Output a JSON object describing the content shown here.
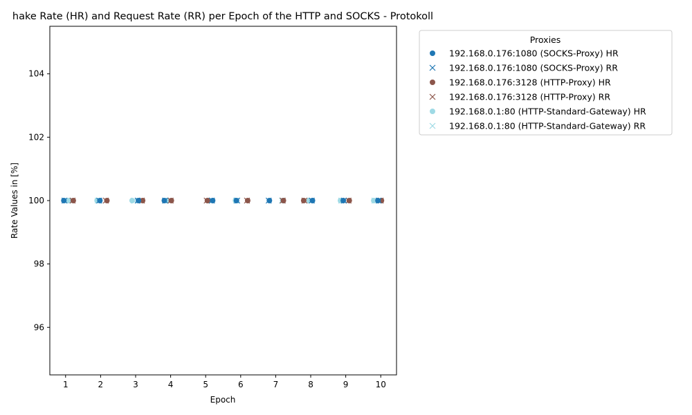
{
  "chart_data": {
    "type": "scatter",
    "title": "hake Rate (HR) and Request Rate (RR) per Epoch of the HTTP and SOCKS - Protokoll",
    "xlabel": "Epoch",
    "ylabel": "Rate Values in [%]",
    "xlim": [
      0.55,
      10.45
    ],
    "ylim": [
      94.5,
      105.5
    ],
    "x_ticks": [
      1,
      2,
      3,
      4,
      5,
      6,
      7,
      8,
      9,
      10
    ],
    "y_ticks": [
      96,
      98,
      100,
      102,
      104
    ],
    "grid": false,
    "legend": {
      "title": "Proxies",
      "placement": "outside-top-right"
    },
    "series": [
      {
        "name": "192.168.0.176:1080 (SOCKS-Proxy) HR",
        "marker": "circle",
        "color": "#1f77b4",
        "x": [
          0.95,
          1.98,
          3.08,
          3.82,
          5.2,
          5.88,
          6.82,
          8.05,
          8.93,
          9.92
        ],
        "y": [
          100,
          100,
          100,
          100,
          100,
          100,
          100,
          100,
          100,
          100
        ]
      },
      {
        "name": "192.168.0.176:1080 (SOCKS-Proxy) RR",
        "marker": "x",
        "color": "#1f77b4",
        "x": [
          0.97,
          1.96,
          3.06,
          3.84,
          5.18,
          5.9,
          6.8,
          8.03,
          8.95,
          9.94
        ],
        "y": [
          100,
          100,
          100,
          100,
          100,
          100,
          100,
          100,
          100,
          100
        ]
      },
      {
        "name": "192.168.0.176:3128 (HTTP-Proxy) HR",
        "marker": "circle",
        "color": "#8c564b",
        "x": [
          1.22,
          2.18,
          3.2,
          4.02,
          5.05,
          6.2,
          7.22,
          7.8,
          9.1,
          10.02
        ],
        "y": [
          100,
          100,
          100,
          100,
          100,
          100,
          100,
          100,
          100,
          100
        ]
      },
      {
        "name": "192.168.0.176:3128 (HTTP-Proxy) RR",
        "marker": "x",
        "color": "#8c564b",
        "x": [
          1.2,
          2.15,
          3.18,
          4.0,
          5.03,
          6.18,
          7.2,
          7.82,
          9.08,
          10.0
        ],
        "y": [
          100,
          100,
          100,
          100,
          100,
          100,
          100,
          100,
          100,
          100
        ]
      },
      {
        "name": "192.168.0.1:80 (HTTP-Standard-Gateway) HR",
        "marker": "circle",
        "color": "#9edae5",
        "x": [
          1.1,
          1.9,
          2.9,
          3.88,
          5.1,
          5.85,
          7.2,
          7.95,
          8.85,
          9.8
        ],
        "y": [
          100,
          100,
          100,
          100,
          100,
          100,
          100,
          100,
          100,
          100
        ]
      },
      {
        "name": "192.168.0.1:80 (HTTP-Standard-Gateway) RR",
        "marker": "x",
        "color": "#9edae5",
        "x": [
          1.08,
          1.92,
          2.95,
          3.86,
          5.12,
          5.87,
          7.18,
          7.97,
          8.87,
          9.82
        ],
        "y": [
          100,
          100,
          100,
          100,
          100,
          100,
          100,
          100,
          100,
          100
        ]
      }
    ]
  }
}
